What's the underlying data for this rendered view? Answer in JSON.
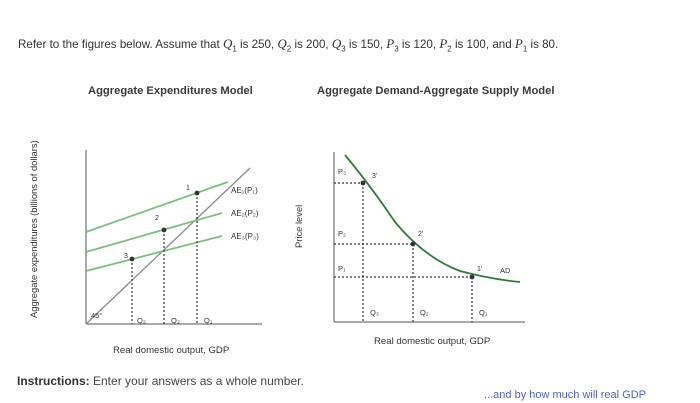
{
  "question": {
    "prefix": "Refer to the figures below. Assume that ",
    "parts": [
      {
        "sym": "Q",
        "sub": "1",
        "text": " is 250, "
      },
      {
        "sym": "Q",
        "sub": "2",
        "text": " is 200, "
      },
      {
        "sym": "Q",
        "sub": "3",
        "text": " is 150, "
      },
      {
        "sym": "P",
        "sub": "3",
        "text": " is 120, "
      },
      {
        "sym": "P",
        "sub": "2",
        "text": " is 100, and "
      },
      {
        "sym": "P",
        "sub": "1",
        "text": " is 80."
      }
    ]
  },
  "left_chart": {
    "title": "Aggregate Expenditures Model",
    "xlabel": "Real domestic output, GDP",
    "ylabel": "Aggregate expenditures (billions of dollars)",
    "angle_label": "45°",
    "line_labels": [
      "AE₁(P₁)",
      "AE₂(P₂)",
      "AE₃(P₃)"
    ],
    "point_labels": [
      "1",
      "2",
      "3"
    ],
    "tick_labels": [
      "Q₃",
      "Q₂",
      "Q₁"
    ]
  },
  "right_chart": {
    "title": "Aggregate Demand-Aggregate Supply Model",
    "xlabel": "Real domestic output, GDP",
    "ylabel": "Price level",
    "curve_label": "AD",
    "point_labels": [
      "3'",
      "2'",
      "1'"
    ],
    "price_labels": [
      "P₃",
      "P₂",
      "P₁"
    ],
    "tick_labels": [
      "Q₃",
      "Q₂",
      "Q₁"
    ]
  },
  "instructions": {
    "label": "Instructions:",
    "text": " Enter your answers as a whole number."
  },
  "partial_text": "...and by how much will real GDP",
  "colors": {
    "green_line": "#7cc07f",
    "gray_line": "#8a8a8a",
    "ad_curve": "#2e7d36",
    "link": "#4f63c7"
  }
}
